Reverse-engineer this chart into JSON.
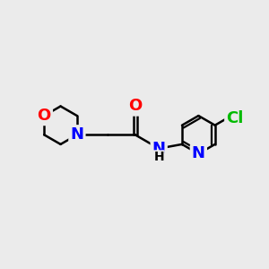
{
  "background_color": "#ebebeb",
  "bond_color": "#000000",
  "bond_width": 1.8,
  "atom_colors": {
    "O": "#ff0000",
    "N": "#0000ff",
    "Cl": "#00bb00",
    "C": "#000000",
    "H": "#000000"
  },
  "font_size_atoms": 13,
  "font_size_h": 10,
  "xlim": [
    0,
    10
  ],
  "ylim": [
    0,
    10
  ]
}
